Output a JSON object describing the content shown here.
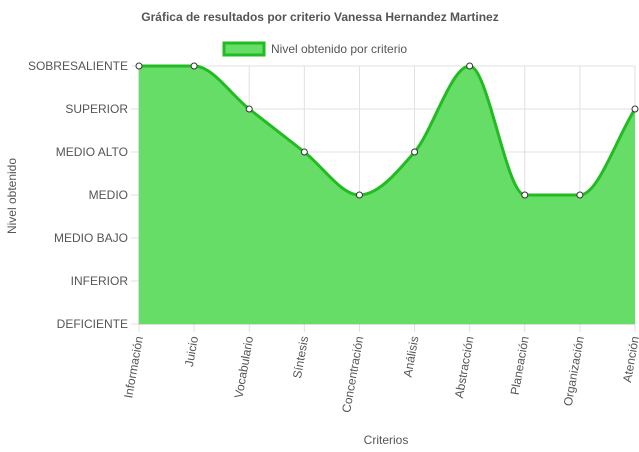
{
  "chart_data": {
    "type": "area",
    "title": "Gráfica de resultados por criterio Vanessa Hernandez Martinez",
    "xlabel": "Criterios",
    "ylabel": "Nivel obtenido",
    "categories": [
      "Información",
      "Juicio",
      "Vocabulario",
      "Síntesis",
      "Concentración",
      "Análisis",
      "Abstracción",
      "Planeación",
      "Organización",
      "Atención"
    ],
    "y_levels": [
      "DEFICIENTE",
      "INFERIOR",
      "MEDIO BAJO",
      "MEDIO",
      "MEDIO ALTO",
      "SUPERIOR",
      "SOBRESALIENTE"
    ],
    "ylim": [
      0,
      6
    ],
    "series": [
      {
        "name": "Nivel obtenido por criterio",
        "values": [
          6,
          6,
          5,
          4,
          3,
          4,
          6,
          3,
          3,
          5
        ],
        "labels": [
          "SOBRESALIENTE",
          "SOBRESALIENTE",
          "SUPERIOR",
          "MEDIO ALTO",
          "MEDIO",
          "MEDIO ALTO",
          "SOBRESALIENTE",
          "MEDIO",
          "MEDIO",
          "SUPERIOR"
        ]
      }
    ],
    "legend_position": "top",
    "grid": true,
    "colors": {
      "fill": "#66dd66",
      "line": "#22bb22",
      "point_fill": "#ffffff",
      "point_stroke": "#333333",
      "grid": "#e0e0e0",
      "axis": "#bbbbbb"
    }
  }
}
